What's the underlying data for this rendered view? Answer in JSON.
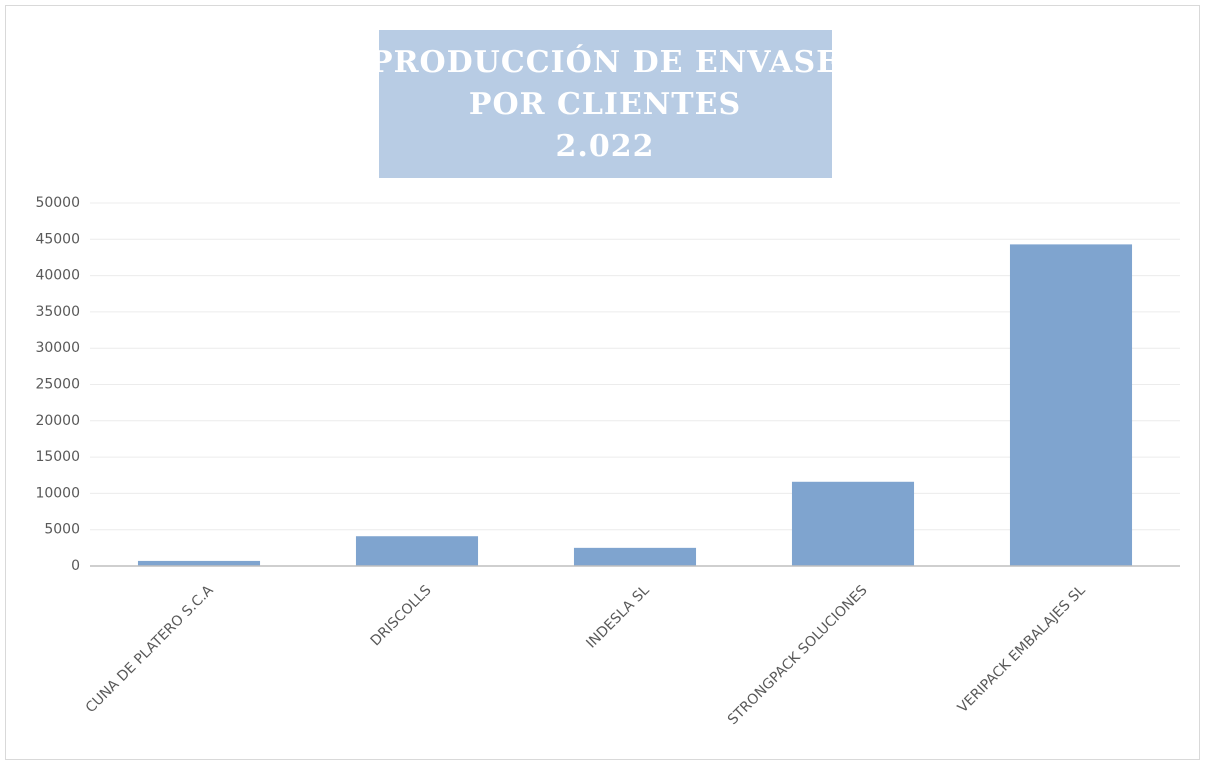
{
  "chart_data": {
    "type": "bar",
    "title": [
      "PRODUCCIÓN DE ENVASE",
      "POR CLIENTES",
      "2.022"
    ],
    "categories": [
      "CUNA DE PLATERO S.C.A",
      "DRISCOLLS",
      "INDESLA SL",
      "STRONGPACK SOLUCIONES",
      "VERIPACK EMBALAJES SL"
    ],
    "values": [
      700,
      4100,
      2500,
      11600,
      44300
    ],
    "color": "#7fa4cf",
    "ylim": [
      0,
      50000
    ],
    "yticks": [
      0,
      5000,
      10000,
      15000,
      20000,
      25000,
      30000,
      35000,
      40000,
      45000,
      50000
    ],
    "grid": true
  }
}
